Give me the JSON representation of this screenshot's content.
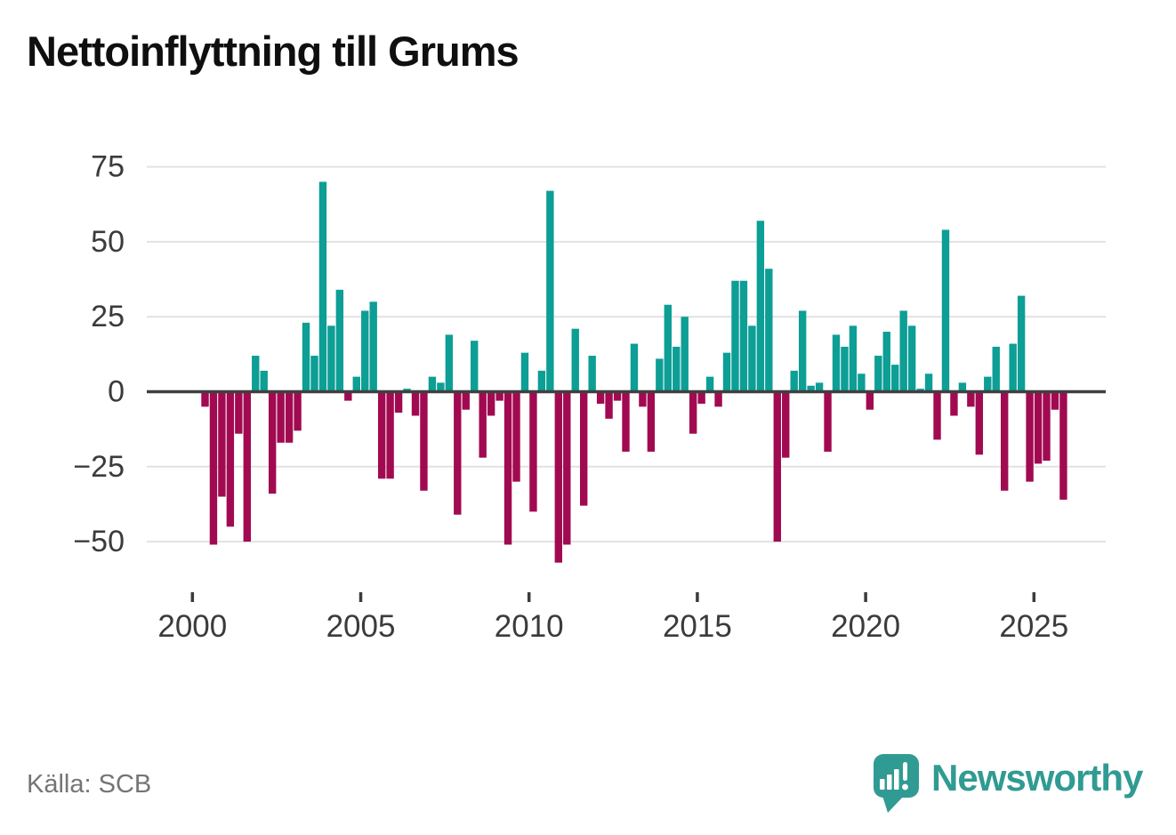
{
  "title": "Nettoinflyttning till Grums",
  "source": "Källa: SCB",
  "brand": {
    "name": "Newsworthy",
    "color": "#309b93"
  },
  "colors": {
    "positive": "#0d9e95",
    "negative": "#a10a51",
    "axis": "#3f3f3f",
    "grid": "#e2e2e2",
    "tick_label": "#3b3b3b"
  },
  "chart_data": {
    "type": "bar",
    "title": "Nettoinflyttning till Grums",
    "frequency": "quarterly",
    "period_start": "2000 Q2",
    "period_end": "2025 Q4",
    "grid": true,
    "ylim": [
      -62,
      80
    ],
    "y_ticks": [
      75,
      50,
      25,
      0,
      -25,
      -50
    ],
    "y_tick_labels": [
      "75",
      "50",
      "25",
      "0",
      "−25",
      "−50"
    ],
    "x_ticks": [
      2000,
      2005,
      2010,
      2015,
      2020,
      2025
    ],
    "x_tick_labels": [
      "2000",
      "2005",
      "2010",
      "2015",
      "2020",
      "2025"
    ],
    "series": [
      {
        "name": "Nettoinflyttning",
        "values": [
          -5,
          -51,
          -35,
          -45,
          -14,
          -50,
          12,
          7,
          -34,
          -17,
          -17,
          -13,
          23,
          12,
          70,
          22,
          34,
          -3,
          5,
          27,
          30,
          -29,
          -29,
          -7,
          1,
          -8,
          -33,
          5,
          3,
          19,
          -41,
          -6,
          17,
          -22,
          -8,
          -3,
          -51,
          -30,
          13,
          -40,
          7,
          67,
          -57,
          -51,
          21,
          -38,
          12,
          -4,
          -9,
          -3,
          -20,
          16,
          -5,
          -20,
          11,
          29,
          15,
          25,
          -14,
          -4,
          5,
          -5,
          13,
          37,
          37,
          22,
          57,
          41,
          -50,
          -22,
          7,
          27,
          2,
          3,
          -20,
          19,
          15,
          22,
          6,
          -6,
          12,
          20,
          9,
          27,
          22,
          1,
          6,
          -16,
          54,
          -8,
          3,
          -5,
          -21,
          5,
          15,
          -33,
          16,
          32,
          -30,
          -24,
          -23,
          -6,
          -36
        ]
      }
    ]
  }
}
